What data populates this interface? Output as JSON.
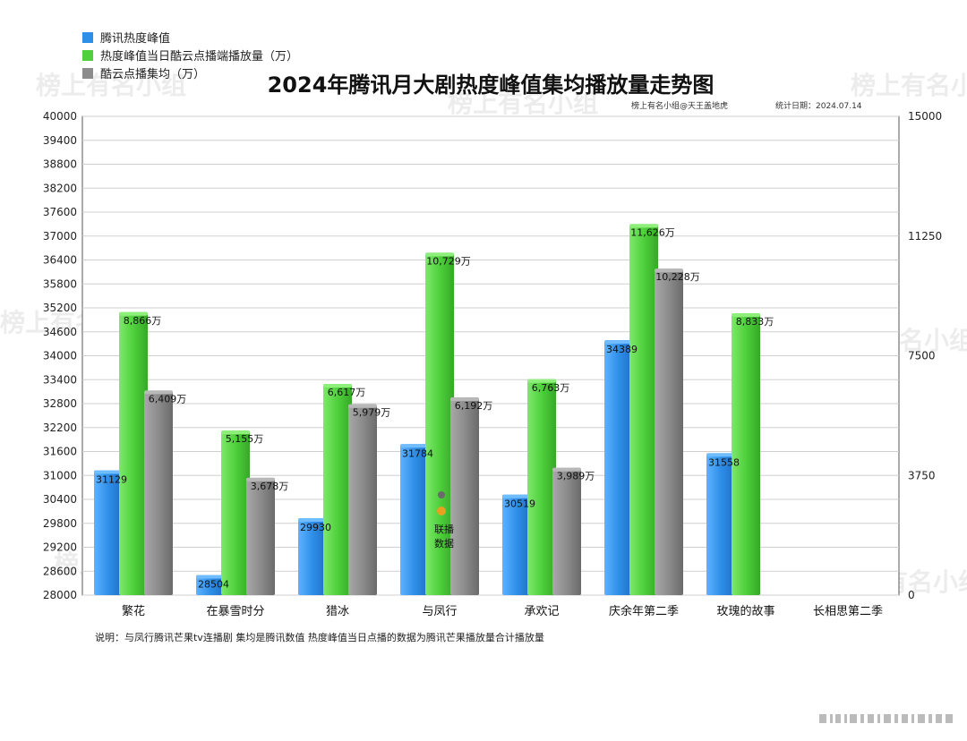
{
  "chart_data": {
    "type": "bar",
    "title": "2024年腾讯月大剧热度峰值集均播放量走势图",
    "credit": "榜上有名小组@天王盖地虎",
    "stat_date": "统计日期：2024.07.14",
    "categories": [
      "繁花",
      "在暴雪时分",
      "猎冰",
      "与凤行",
      "承欢记",
      "庆余年第二季",
      "玫瑰的故事",
      "长相思第二季"
    ],
    "series": [
      {
        "name": "腾讯热度峰值",
        "axis": "left",
        "color": "#2e8fe8",
        "values": [
          31129,
          28504,
          29930,
          31784,
          30519,
          34389,
          31558,
          null
        ],
        "labels": [
          "31129",
          "28504",
          "29930",
          "31784",
          "30519",
          "34389",
          "31558",
          ""
        ]
      },
      {
        "name": "热度峰值当日酷云点播端播放量（万）",
        "axis": "right",
        "color": "#4fd03c",
        "values": [
          8866,
          5155,
          6617,
          10729,
          6763,
          11626,
          8833,
          null
        ],
        "labels": [
          "8,866万",
          "5,155万",
          "6,617万",
          "10,729万",
          "6,763万",
          "11,626万",
          "8,833万",
          ""
        ]
      },
      {
        "name": "酷云点播集均（万）",
        "axis": "right",
        "color": "#8c8c8c",
        "values": [
          6409,
          3678,
          5979,
          6192,
          3989,
          10228,
          null,
          null
        ],
        "labels": [
          "6,409万",
          "3,678万",
          "5,979万",
          "6,192万",
          "3,989万",
          "10,228万",
          "",
          ""
        ]
      }
    ],
    "left_axis": {
      "ylim": [
        28000,
        40000
      ],
      "ticks": [
        "28000",
        "28600",
        "29200",
        "29800",
        "30400",
        "31000",
        "31600",
        "32200",
        "32800",
        "33400",
        "34000",
        "34600",
        "35200",
        "35800",
        "36400",
        "37000",
        "37600",
        "38200",
        "38800",
        "39400",
        "40000"
      ]
    },
    "right_axis": {
      "ylim": [
        0,
        15000
      ],
      "ticks": [
        "0",
        "3750",
        "7500",
        "11250",
        "15000"
      ]
    },
    "annotation": [
      "联播",
      "数据"
    ],
    "annotation_category": "与凤行",
    "note": "说明：与凤行腾讯芒果tv连播剧 集均是腾讯数值 热度峰值当日点播的数据为腾讯芒果播放量合计播放量",
    "legend_position": "top-left",
    "grid": true
  },
  "watermark": "榜上有名小组"
}
